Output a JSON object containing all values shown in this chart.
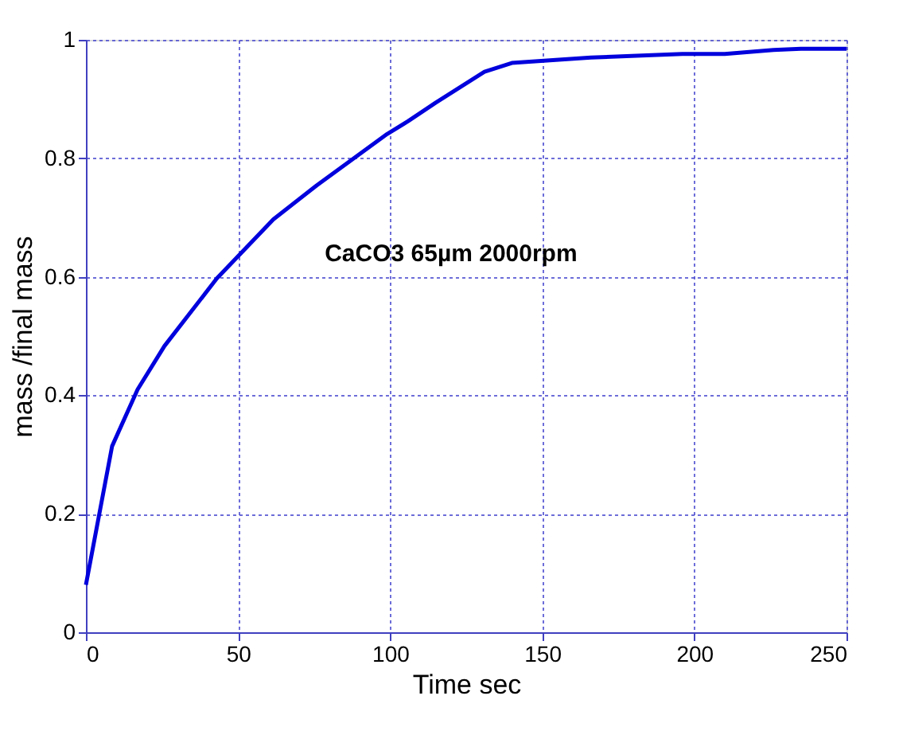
{
  "chart_data": {
    "type": "line",
    "xlabel": "Time sec",
    "ylabel": "mass /final mass",
    "annotations": [
      "CaCO3 65µm 2000rpm"
    ],
    "series": [
      {
        "color": "#0000dd",
        "x": [
          0,
          8.6,
          17,
          25.8,
          43,
          61.6,
          75.8,
          99,
          106,
          115,
          131,
          140,
          166,
          196,
          210,
          226,
          235,
          250
        ],
        "values": [
          0.08,
          0.314,
          0.41,
          0.483,
          0.597,
          0.697,
          0.754,
          0.841,
          0.863,
          0.894,
          0.946,
          0.961,
          0.97,
          0.976,
          0.976,
          0.983,
          0.985,
          0.985
        ]
      }
    ],
    "xlim": [
      0,
      250
    ],
    "xticks": [
      0,
      50,
      100,
      150,
      200,
      250
    ],
    "ylim": [
      0,
      1
    ],
    "yticks": [
      0,
      0.2,
      0.4,
      0.6,
      0.8,
      1
    ],
    "grid": true,
    "marker": "none",
    "line_style": "solid"
  }
}
